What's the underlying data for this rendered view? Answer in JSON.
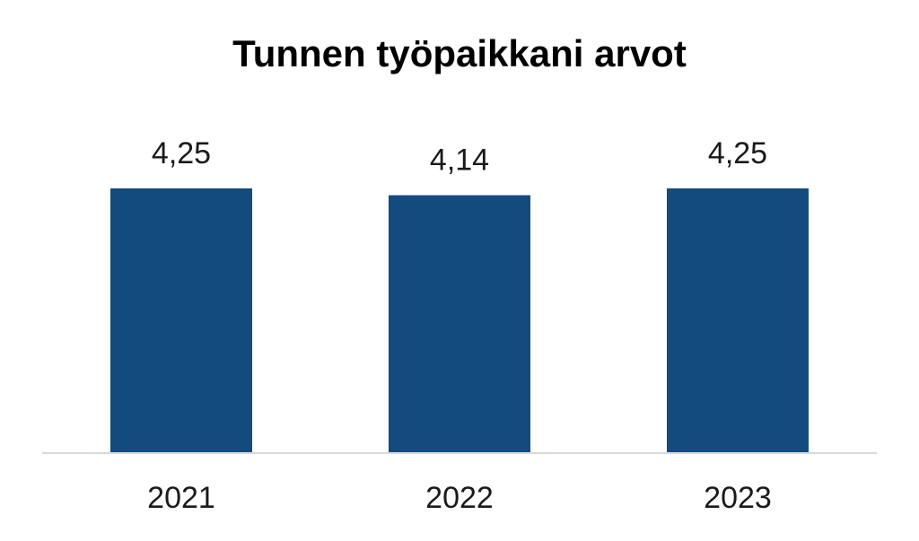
{
  "chart_data": {
    "type": "bar",
    "title": "Tunnen työpaikkani arvot",
    "categories": [
      "2021",
      "2022",
      "2023"
    ],
    "values": [
      4.25,
      4.14,
      4.25
    ],
    "value_labels": [
      "4,25",
      "4,14",
      "4,25"
    ],
    "xlabel": "",
    "ylabel": "",
    "ylim": [
      0,
      5
    ],
    "grid": false,
    "legend": "none",
    "bar_color": "#134b7e",
    "axis_color": "#d9d9d9"
  }
}
